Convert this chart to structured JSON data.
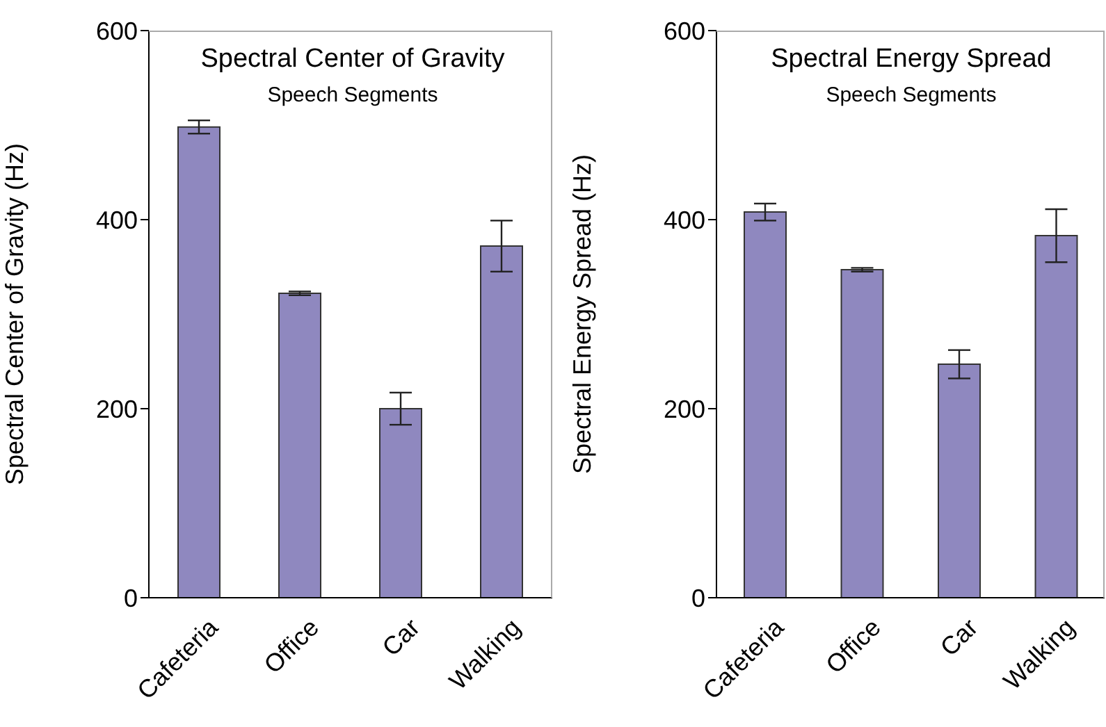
{
  "chart_data": [
    {
      "type": "bar",
      "title": "Spectral Center of Gravity",
      "subtitle": "Speech Segments",
      "ylabel": "Spectral Center of Gravity (Hz)",
      "categories": [
        "Cafeteria",
        "Office",
        "Car",
        "Walking"
      ],
      "values": [
        498,
        322,
        200,
        372
      ],
      "errors": [
        7,
        2,
        17,
        27
      ],
      "color": "#8f88bf",
      "ylim": [
        0,
        600
      ],
      "yticks": [
        0,
        200,
        400,
        600
      ]
    },
    {
      "type": "bar",
      "title": "Spectral Energy Spread",
      "subtitle": "Speech Segments",
      "ylabel": "Spectral Energy Spread (Hz)",
      "categories": [
        "Cafeteria",
        "Office",
        "Car",
        "Walking"
      ],
      "values": [
        408,
        347,
        247,
        383
      ],
      "errors": [
        9,
        2,
        15,
        28
      ],
      "color": "#8f88bf",
      "ylim": [
        0,
        600
      ],
      "yticks": [
        0,
        200,
        400,
        600
      ]
    }
  ]
}
